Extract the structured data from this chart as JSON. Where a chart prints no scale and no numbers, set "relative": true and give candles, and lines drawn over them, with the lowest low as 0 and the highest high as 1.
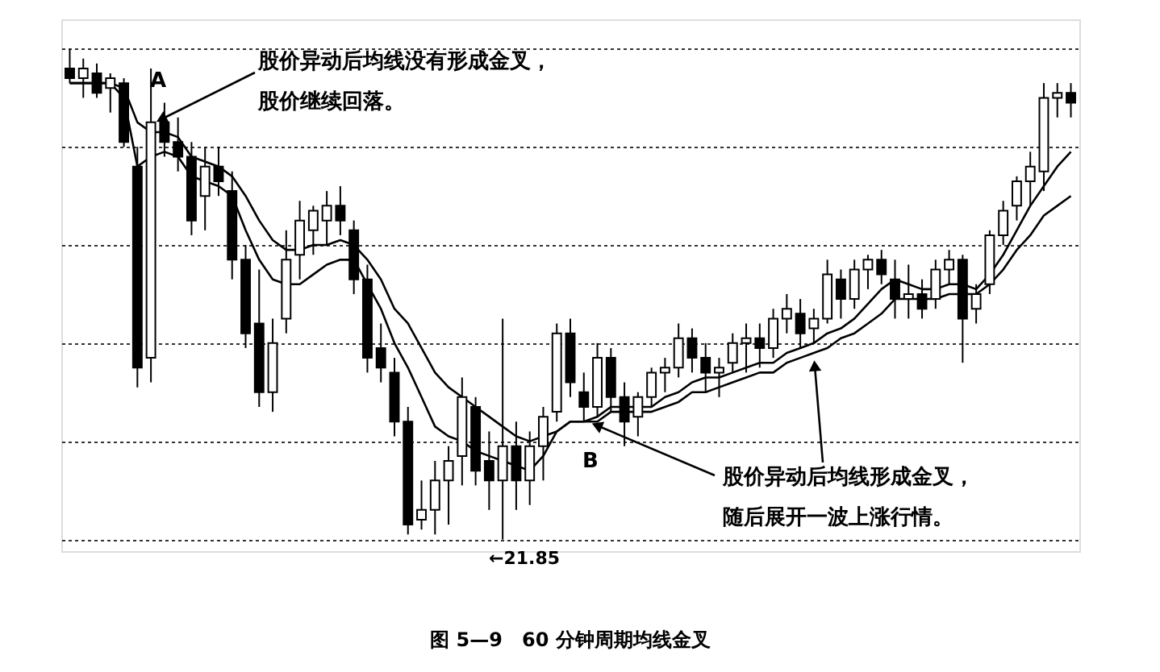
{
  "chart_data": {
    "type": "candlestick",
    "relative": true,
    "title": "图 5—9　60 分钟周期均线金叉",
    "color": "#000000",
    "grid": "y",
    "annotations": [
      "A",
      "股价异动后均线没有形成金叉，",
      "股价继续回落。",
      "B",
      "股价异动后均线形成金叉，",
      "随后展开一波上涨行情。",
      "←21.85"
    ],
    "categories": [
      null,
      null,
      null,
      null,
      null,
      null,
      null,
      null,
      null,
      null,
      null,
      null,
      null,
      null,
      null,
      null,
      null,
      null,
      null,
      null,
      null,
      null,
      null,
      null,
      null,
      null,
      null,
      null,
      null,
      null,
      null,
      null,
      null,
      null,
      null,
      null,
      null,
      null,
      null,
      null,
      null,
      null,
      null,
      null,
      null,
      null,
      null,
      null,
      null,
      null,
      null,
      null,
      null,
      null,
      null,
      null,
      null,
      null,
      null,
      null,
      null,
      null,
      null,
      null,
      null,
      null,
      null,
      null,
      null,
      null,
      null,
      null,
      null,
      null,
      null
    ],
    "ohlc": [
      [
        0.96,
        1,
        0.93,
        0.94
      ],
      [
        0.94,
        0.98,
        0.9,
        0.96
      ],
      [
        0.95,
        0.97,
        0.9,
        0.91
      ],
      [
        0.92,
        0.95,
        0.87,
        0.94
      ],
      [
        0.93,
        0.94,
        0.8,
        0.81
      ],
      [
        0.76,
        0.8,
        0.31,
        0.35
      ],
      [
        0.37,
        0.96,
        0.32,
        0.85
      ],
      [
        0.85,
        0.89,
        0.78,
        0.81
      ],
      [
        0.81,
        0.86,
        0.75,
        0.78
      ],
      [
        0.78,
        0.81,
        0.62,
        0.65
      ],
      [
        0.7,
        0.8,
        0.63,
        0.76
      ],
      [
        0.76,
        0.8,
        0.7,
        0.73
      ],
      [
        0.71,
        0.75,
        0.53,
        0.57
      ],
      [
        0.57,
        0.6,
        0.39,
        0.42
      ],
      [
        0.44,
        0.55,
        0.27,
        0.3
      ],
      [
        0.3,
        0.45,
        0.26,
        0.4
      ],
      [
        0.45,
        0.63,
        0.42,
        0.57
      ],
      [
        0.58,
        0.69,
        0.53,
        0.65
      ],
      [
        0.63,
        0.68,
        0.58,
        0.67
      ],
      [
        0.65,
        0.71,
        0.6,
        0.68
      ],
      [
        0.68,
        0.72,
        0.62,
        0.65
      ],
      [
        0.63,
        0.65,
        0.5,
        0.53
      ],
      [
        0.53,
        0.56,
        0.34,
        0.37
      ],
      [
        0.39,
        0.44,
        0.32,
        0.35
      ],
      [
        0.34,
        0.37,
        0.21,
        0.24
      ],
      [
        0.24,
        0.27,
        0.01,
        0.03
      ],
      [
        0.04,
        0.12,
        0.02,
        0.06
      ],
      [
        0.06,
        0.16,
        0.01,
        0.12
      ],
      [
        0.12,
        0.19,
        0.03,
        0.16
      ],
      [
        0.17,
        0.33,
        0.11,
        0.29
      ],
      [
        0.27,
        0.29,
        0.11,
        0.14
      ],
      [
        0.16,
        0.22,
        0.06,
        0.12
      ],
      [
        0.12,
        0.45,
        0,
        0.19
      ],
      [
        0.19,
        0.24,
        0.06,
        0.12
      ],
      [
        0.12,
        0.22,
        0.07,
        0.19
      ],
      [
        0.19,
        0.27,
        0.12,
        0.25
      ],
      [
        0.26,
        0.44,
        0.24,
        0.42
      ],
      [
        0.42,
        0.45,
        0.29,
        0.32
      ],
      [
        0.3,
        0.34,
        0.24,
        0.27
      ],
      [
        0.27,
        0.4,
        0.25,
        0.37
      ],
      [
        0.37,
        0.39,
        0.26,
        0.29
      ],
      [
        0.29,
        0.32,
        0.19,
        0.24
      ],
      [
        0.25,
        0.3,
        0.21,
        0.29
      ],
      [
        0.29,
        0.35,
        0.27,
        0.34
      ],
      [
        0.34,
        0.37,
        0.3,
        0.35
      ],
      [
        0.35,
        0.44,
        0.33,
        0.41
      ],
      [
        0.41,
        0.43,
        0.34,
        0.37
      ],
      [
        0.37,
        0.4,
        0.3,
        0.34
      ],
      [
        0.34,
        0.37,
        0.29,
        0.35
      ],
      [
        0.36,
        0.42,
        0.34,
        0.4
      ],
      [
        0.4,
        0.44,
        0.34,
        0.41
      ],
      [
        0.41,
        0.44,
        0.35,
        0.39
      ],
      [
        0.39,
        0.47,
        0.37,
        0.45
      ],
      [
        0.45,
        0.5,
        0.42,
        0.47
      ],
      [
        0.46,
        0.49,
        0.39,
        0.42
      ],
      [
        0.43,
        0.47,
        0.4,
        0.45
      ],
      [
        0.45,
        0.57,
        0.44,
        0.54
      ],
      [
        0.53,
        0.55,
        0.45,
        0.49
      ],
      [
        0.49,
        0.57,
        0.47,
        0.55
      ],
      [
        0.55,
        0.58,
        0.51,
        0.57
      ],
      [
        0.57,
        0.59,
        0.52,
        0.54
      ],
      [
        0.53,
        0.57,
        0.45,
        0.49
      ],
      [
        0.49,
        0.56,
        0.45,
        0.5
      ],
      [
        0.5,
        0.53,
        0.45,
        0.47
      ],
      [
        0.49,
        0.57,
        0.47,
        0.55
      ],
      [
        0.55,
        0.59,
        0.52,
        0.57
      ],
      [
        0.57,
        0.58,
        0.36,
        0.45
      ],
      [
        0.47,
        0.52,
        0.44,
        0.5
      ],
      [
        0.52,
        0.63,
        0.5,
        0.62
      ],
      [
        0.62,
        0.69,
        0.6,
        0.67
      ],
      [
        0.68,
        0.74,
        0.65,
        0.73
      ],
      [
        0.73,
        0.79,
        0.68,
        0.76
      ],
      [
        0.75,
        0.93,
        0.71,
        0.9
      ],
      [
        0.9,
        0.93,
        0.86,
        0.91
      ],
      [
        0.91,
        0.93,
        0.86,
        0.89
      ]
    ],
    "series": [
      {
        "type": "line",
        "color": "#000000",
        "values": [
          0.93,
          0.93,
          0.93,
          0.93,
          0.9,
          0.76,
          0.78,
          0.79,
          0.78,
          0.74,
          0.73,
          0.72,
          0.7,
          0.63,
          0.57,
          0.53,
          0.52,
          0.52,
          0.54,
          0.56,
          0.57,
          0.57,
          0.52,
          0.47,
          0.4,
          0.35,
          0.29,
          0.23,
          0.21,
          0.2,
          0.18,
          0.17,
          0.16,
          0.15,
          0.14,
          0.17,
          0.22,
          0.24,
          0.24,
          0.25,
          0.27,
          0.27,
          0.27,
          0.27,
          0.29,
          0.3,
          0.32,
          0.33,
          0.33,
          0.34,
          0.35,
          0.36,
          0.36,
          0.38,
          0.39,
          0.4,
          0.42,
          0.43,
          0.45,
          0.48,
          0.51,
          0.53,
          0.52,
          0.51,
          0.51,
          0.52,
          0.52,
          0.51,
          0.54,
          0.58,
          0.63,
          0.68,
          0.72,
          0.76,
          0.79
        ]
      },
      {
        "type": "line",
        "color": "#000000",
        "values": [
          0.93,
          0.93,
          0.93,
          0.93,
          0.92,
          0.85,
          0.83,
          0.83,
          0.82,
          0.78,
          0.77,
          0.76,
          0.74,
          0.7,
          0.65,
          0.61,
          0.59,
          0.59,
          0.6,
          0.6,
          0.61,
          0.6,
          0.57,
          0.53,
          0.47,
          0.44,
          0.39,
          0.34,
          0.31,
          0.29,
          0.27,
          0.25,
          0.23,
          0.21,
          0.2,
          0.21,
          0.22,
          0.24,
          0.24,
          0.24,
          0.26,
          0.26,
          0.26,
          0.26,
          0.27,
          0.28,
          0.3,
          0.3,
          0.31,
          0.32,
          0.33,
          0.34,
          0.34,
          0.36,
          0.37,
          0.38,
          0.39,
          0.41,
          0.42,
          0.44,
          0.46,
          0.49,
          0.49,
          0.49,
          0.49,
          0.5,
          0.5,
          0.5,
          0.52,
          0.55,
          0.59,
          0.62,
          0.66,
          0.68,
          0.7
        ]
      }
    ]
  }
}
